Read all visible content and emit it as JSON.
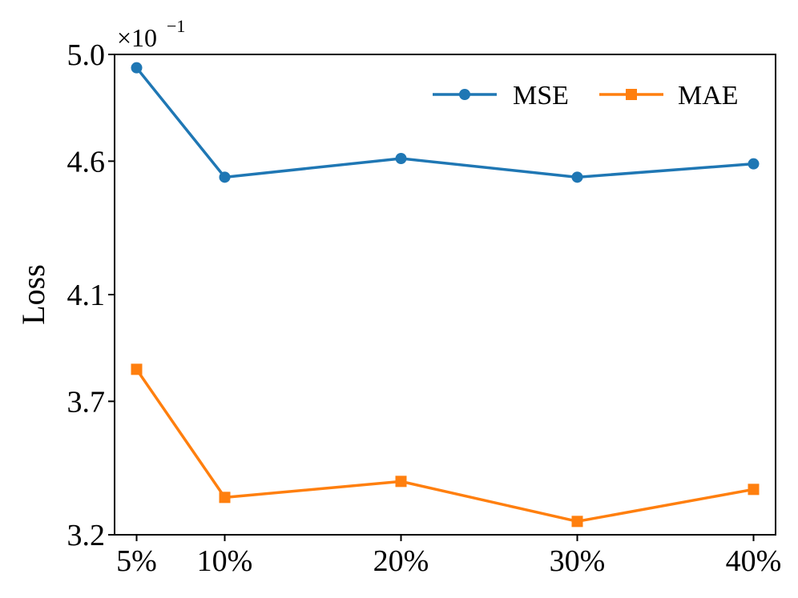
{
  "chart_data": {
    "type": "line",
    "x_positions": [
      5,
      10,
      20,
      30,
      40
    ],
    "categories": [
      "5%",
      "10%",
      "20%",
      "30%",
      "40%"
    ],
    "ylabel": "Loss",
    "xlabel": "",
    "ylim": [
      3.2,
      5.0
    ],
    "yticks": [
      3.2,
      3.7,
      4.1,
      4.6,
      5.0
    ],
    "ytick_labels": [
      "3.2",
      "3.7",
      "4.1",
      "4.6",
      "5.0"
    ],
    "y_offset_label": "×10",
    "y_offset_exponent": "−1",
    "grid": false,
    "legend_position": "top-right",
    "series": [
      {
        "name": "MSE",
        "marker": "circle",
        "color": "#1f77b4",
        "values": [
          4.95,
          4.54,
          4.61,
          4.54,
          4.59
        ]
      },
      {
        "name": "MAE",
        "marker": "square",
        "color": "#ff7f0e",
        "values": [
          3.82,
          3.34,
          3.4,
          3.25,
          3.37
        ]
      }
    ]
  }
}
